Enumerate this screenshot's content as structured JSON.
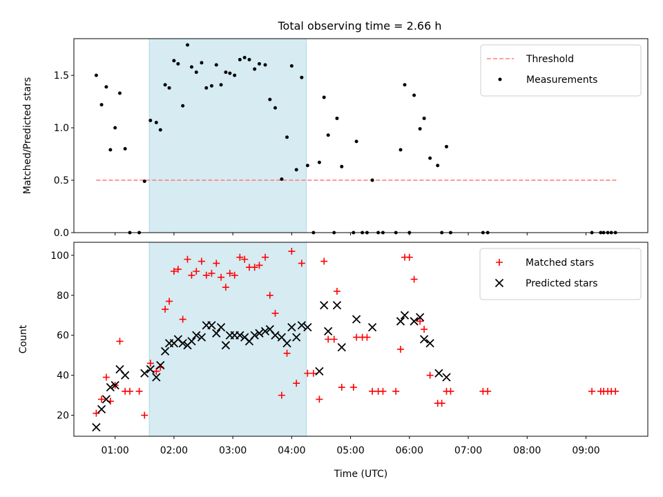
{
  "title": "Total observing time = 2.66 h",
  "colors": {
    "threshold": "#ff7f7f",
    "measurement": "#000000",
    "matched": "#ff0000",
    "predicted": "#000000",
    "shade": "#add8e6",
    "frame": "#000000"
  },
  "chart_data": [
    {
      "type": "scatter",
      "panel": "top",
      "ylabel": "Matched/Predicted stars",
      "xlabel": "",
      "ylim": [
        0,
        1.85
      ],
      "xlim": [
        0.3,
        10.05
      ],
      "yticks": [
        0.0,
        0.5,
        1.0,
        1.5
      ],
      "ytick_labels": [
        "0.0",
        "0.5",
        "1.0",
        "1.5"
      ],
      "shaded_span": [
        1.58,
        4.25
      ],
      "legend_position": "top-right",
      "threshold": {
        "name": "Threshold",
        "y": 0.5,
        "x": [
          0.68,
          9.55
        ]
      },
      "series": [
        {
          "name": "Measurements",
          "marker": "dot",
          "points": [
            [
              0.68,
              1.5
            ],
            [
              0.77,
              1.22
            ],
            [
              0.85,
              1.39
            ],
            [
              0.92,
              0.79
            ],
            [
              1.0,
              1.0
            ],
            [
              1.08,
              1.33
            ],
            [
              1.17,
              0.8
            ],
            [
              1.25,
              0.0
            ],
            [
              1.41,
              0.0
            ],
            [
              1.5,
              0.49
            ],
            [
              1.6,
              1.07
            ],
            [
              1.7,
              1.05
            ],
            [
              1.77,
              0.98
            ],
            [
              1.85,
              1.41
            ],
            [
              1.92,
              1.38
            ],
            [
              2.0,
              1.64
            ],
            [
              2.07,
              1.61
            ],
            [
              2.15,
              1.21
            ],
            [
              2.23,
              1.79
            ],
            [
              2.3,
              1.58
            ],
            [
              2.38,
              1.53
            ],
            [
              2.47,
              1.62
            ],
            [
              2.55,
              1.38
            ],
            [
              2.64,
              1.4
            ],
            [
              2.72,
              1.6
            ],
            [
              2.8,
              1.41
            ],
            [
              2.88,
              1.53
            ],
            [
              2.95,
              1.52
            ],
            [
              3.03,
              1.5
            ],
            [
              3.12,
              1.65
            ],
            [
              3.2,
              1.67
            ],
            [
              3.28,
              1.65
            ],
            [
              3.37,
              1.56
            ],
            [
              3.45,
              1.61
            ],
            [
              3.55,
              1.6
            ],
            [
              3.63,
              1.27
            ],
            [
              3.72,
              1.19
            ],
            [
              3.83,
              0.51
            ],
            [
              3.92,
              0.91
            ],
            [
              4.0,
              1.59
            ],
            [
              4.08,
              0.6
            ],
            [
              4.17,
              1.48
            ],
            [
              4.27,
              0.64
            ],
            [
              4.37,
              0.0
            ],
            [
              4.47,
              0.67
            ],
            [
              4.55,
              1.29
            ],
            [
              4.62,
              0.93
            ],
            [
              4.72,
              0.0
            ],
            [
              4.77,
              1.09
            ],
            [
              4.85,
              0.63
            ],
            [
              5.05,
              0.0
            ],
            [
              5.1,
              0.87
            ],
            [
              5.2,
              0.0
            ],
            [
              5.28,
              0.0
            ],
            [
              5.37,
              0.5
            ],
            [
              5.47,
              0.0
            ],
            [
              5.55,
              0.0
            ],
            [
              5.77,
              0.0
            ],
            [
              5.85,
              0.79
            ],
            [
              5.92,
              1.41
            ],
            [
              6.0,
              0.0
            ],
            [
              6.08,
              1.31
            ],
            [
              6.18,
              0.99
            ],
            [
              6.25,
              1.09
            ],
            [
              6.35,
              0.71
            ],
            [
              6.48,
              0.64
            ],
            [
              6.55,
              0.0
            ],
            [
              6.63,
              0.82
            ],
            [
              6.7,
              0.0
            ],
            [
              7.25,
              0.0
            ],
            [
              7.33,
              0.0
            ],
            [
              9.1,
              0.0
            ],
            [
              9.25,
              0.0
            ],
            [
              9.3,
              0.0
            ],
            [
              9.37,
              0.0
            ],
            [
              9.43,
              0.0
            ],
            [
              9.5,
              0.0
            ]
          ]
        }
      ]
    },
    {
      "type": "scatter",
      "panel": "bottom",
      "ylabel": "Count",
      "xlabel": "Time (UTC)",
      "ylim": [
        9.5,
        106.5
      ],
      "xlim": [
        0.3,
        10.05
      ],
      "yticks": [
        20,
        40,
        60,
        80,
        100
      ],
      "ytick_labels": [
        "20",
        "40",
        "60",
        "80",
        "100"
      ],
      "xticks": [
        1,
        2,
        3,
        4,
        5,
        6,
        7,
        8,
        9
      ],
      "xtick_labels": [
        "01:00",
        "02:00",
        "03:00",
        "04:00",
        "05:00",
        "06:00",
        "07:00",
        "08:00",
        "09:00"
      ],
      "shaded_span": [
        1.58,
        4.25
      ],
      "legend_position": "top-right",
      "series": [
        {
          "name": "Matched stars",
          "marker": "plus",
          "points": [
            [
              0.68,
              21
            ],
            [
              0.77,
              28
            ],
            [
              0.85,
              39
            ],
            [
              0.92,
              27
            ],
            [
              1.0,
              35
            ],
            [
              1.08,
              57
            ],
            [
              1.17,
              32
            ],
            [
              1.25,
              32
            ],
            [
              1.41,
              32
            ],
            [
              1.5,
              20
            ],
            [
              1.6,
              46
            ],
            [
              1.7,
              42
            ],
            [
              1.77,
              44
            ],
            [
              1.85,
              73
            ],
            [
              1.92,
              77
            ],
            [
              2.0,
              92
            ],
            [
              2.07,
              93
            ],
            [
              2.15,
              68
            ],
            [
              2.23,
              98
            ],
            [
              2.3,
              90
            ],
            [
              2.38,
              92
            ],
            [
              2.47,
              97
            ],
            [
              2.55,
              90
            ],
            [
              2.64,
              91
            ],
            [
              2.72,
              96
            ],
            [
              2.8,
              89
            ],
            [
              2.88,
              84
            ],
            [
              2.95,
              91
            ],
            [
              3.03,
              90
            ],
            [
              3.12,
              99
            ],
            [
              3.2,
              98
            ],
            [
              3.28,
              94
            ],
            [
              3.37,
              94
            ],
            [
              3.45,
              95
            ],
            [
              3.55,
              99
            ],
            [
              3.63,
              80
            ],
            [
              3.72,
              71
            ],
            [
              3.83,
              30
            ],
            [
              3.92,
              51
            ],
            [
              4.0,
              102
            ],
            [
              4.08,
              36
            ],
            [
              4.17,
              96
            ],
            [
              4.27,
              41
            ],
            [
              4.37,
              41
            ],
            [
              4.47,
              28
            ],
            [
              4.55,
              97
            ],
            [
              4.62,
              58
            ],
            [
              4.72,
              58
            ],
            [
              4.77,
              82
            ],
            [
              4.85,
              34
            ],
            [
              5.05,
              34
            ],
            [
              5.1,
              59
            ],
            [
              5.2,
              59
            ],
            [
              5.28,
              59
            ],
            [
              5.37,
              32
            ],
            [
              5.47,
              32
            ],
            [
              5.55,
              32
            ],
            [
              5.77,
              32
            ],
            [
              5.85,
              53
            ],
            [
              5.92,
              99
            ],
            [
              6.0,
              99
            ],
            [
              6.08,
              88
            ],
            [
              6.18,
              67
            ],
            [
              6.25,
              63
            ],
            [
              6.35,
              40
            ],
            [
              6.48,
              26
            ],
            [
              6.55,
              26
            ],
            [
              6.63,
              32
            ],
            [
              6.7,
              32
            ],
            [
              7.25,
              32
            ],
            [
              7.33,
              32
            ],
            [
              9.1,
              32
            ],
            [
              9.25,
              32
            ],
            [
              9.3,
              32
            ],
            [
              9.37,
              32
            ],
            [
              9.43,
              32
            ],
            [
              9.5,
              32
            ]
          ]
        },
        {
          "name": "Predicted stars",
          "marker": "x",
          "points": [
            [
              0.68,
              14
            ],
            [
              0.77,
              23
            ],
            [
              0.85,
              28
            ],
            [
              0.92,
              34
            ],
            [
              1.0,
              35
            ],
            [
              1.08,
              43
            ],
            [
              1.17,
              40
            ],
            [
              1.5,
              41
            ],
            [
              1.6,
              43
            ],
            [
              1.7,
              39
            ],
            [
              1.77,
              45
            ],
            [
              1.85,
              52
            ],
            [
              1.92,
              56
            ],
            [
              2.0,
              56
            ],
            [
              2.07,
              58
            ],
            [
              2.15,
              56
            ],
            [
              2.23,
              55
            ],
            [
              2.3,
              57
            ],
            [
              2.38,
              60
            ],
            [
              2.47,
              59
            ],
            [
              2.55,
              65
            ],
            [
              2.64,
              65
            ],
            [
              2.72,
              61
            ],
            [
              2.8,
              64
            ],
            [
              2.88,
              55
            ],
            [
              2.95,
              60
            ],
            [
              3.03,
              60
            ],
            [
              3.12,
              60
            ],
            [
              3.2,
              59
            ],
            [
              3.28,
              57
            ],
            [
              3.37,
              60
            ],
            [
              3.45,
              61
            ],
            [
              3.55,
              62
            ],
            [
              3.63,
              63
            ],
            [
              3.72,
              60
            ],
            [
              3.83,
              59
            ],
            [
              3.92,
              56
            ],
            [
              4.0,
              64
            ],
            [
              4.08,
              59
            ],
            [
              4.17,
              65
            ],
            [
              4.27,
              64
            ],
            [
              4.47,
              42
            ],
            [
              4.55,
              75
            ],
            [
              4.62,
              62
            ],
            [
              4.77,
              75
            ],
            [
              4.85,
              54
            ],
            [
              5.1,
              68
            ],
            [
              5.37,
              64
            ],
            [
              5.85,
              67
            ],
            [
              5.92,
              70
            ],
            [
              6.08,
              67
            ],
            [
              6.18,
              69
            ],
            [
              6.25,
              58
            ],
            [
              6.35,
              56
            ],
            [
              6.5,
              41
            ],
            [
              6.63,
              39
            ]
          ]
        }
      ]
    }
  ]
}
